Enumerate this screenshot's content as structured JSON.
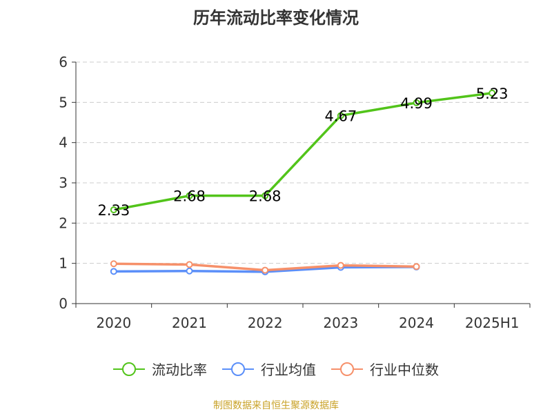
{
  "title": "历年流动比率变化情况",
  "source_text": "制图数据来自恒生聚源数据库",
  "colors": {
    "series_1": "#52c41a",
    "series_2": "#5b8ff9",
    "series_3": "#f6906a",
    "grid": "#cccccc",
    "axis": "#333333",
    "source": "#c9a227"
  },
  "chart_data": {
    "type": "line",
    "categories": [
      "2020",
      "2021",
      "2022",
      "2023",
      "2024",
      "2025H1"
    ],
    "ylim": [
      0,
      6
    ],
    "yticks": [
      "0",
      "1",
      "2",
      "3",
      "4",
      "5",
      "6"
    ],
    "grid": true,
    "legend_position": "bottom",
    "series": [
      {
        "name": "流动比率",
        "color": "#52c41a",
        "values": [
          2.33,
          2.68,
          2.68,
          4.67,
          4.99,
          5.23
        ],
        "labels": [
          "2.33",
          "2.68",
          "2.68",
          "4.67",
          "4.99",
          "5.23"
        ]
      },
      {
        "name": "行业均值",
        "color": "#5b8ff9",
        "values": [
          0.8,
          0.81,
          0.79,
          0.9,
          0.91,
          null
        ]
      },
      {
        "name": "行业中位数",
        "color": "#f6906a",
        "values": [
          0.99,
          0.97,
          0.83,
          0.95,
          0.92,
          null
        ]
      }
    ]
  }
}
